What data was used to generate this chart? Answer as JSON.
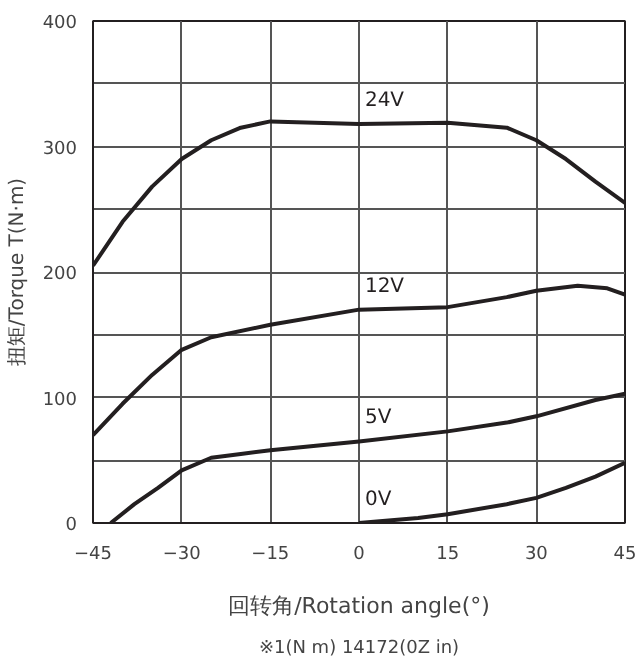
{
  "chart_data": {
    "type": "line",
    "xlabel": "回转角/Rotation angle(°)",
    "ylabel": "扭矩/Torque T(N·m)",
    "annotations": [
      "※1(N m) 14172(0Z in)"
    ],
    "xlim": [
      -45,
      45
    ],
    "ylim": [
      0,
      400
    ],
    "xticks": [
      {
        "value": -45,
        "label": "−45"
      },
      {
        "value": -30,
        "label": "−30"
      },
      {
        "value": -15,
        "label": "−15"
      },
      0,
      15,
      30,
      45
    ],
    "yticks": [
      0,
      {
        "value": 50,
        "label": null
      },
      100,
      {
        "value": 150,
        "label": null
      },
      200,
      {
        "value": 250,
        "label": null
      },
      300,
      {
        "value": 350,
        "label": null
      },
      400
    ],
    "grid": true,
    "marker": "none",
    "line_style": "solid",
    "series": [
      {
        "name": "24V",
        "color": "#231f20",
        "x": [
          -45,
          -40,
          -35,
          -30,
          -25,
          -20,
          -15,
          0,
          15,
          25,
          30,
          35,
          40,
          45
        ],
        "values": [
          205,
          240,
          268,
          290,
          305,
          315,
          320,
          318,
          319,
          315,
          305,
          290,
          272,
          255
        ]
      },
      {
        "name": "12V",
        "color": "#231f20",
        "x": [
          -45,
          -40,
          -35,
          -30,
          -25,
          -15,
          0,
          15,
          25,
          30,
          37,
          42,
          45
        ],
        "values": [
          70,
          95,
          118,
          138,
          148,
          158,
          170,
          172,
          180,
          185,
          189,
          187,
          182
        ]
      },
      {
        "name": "5V",
        "color": "#231f20",
        "x": [
          -42,
          -38,
          -34,
          -30,
          -25,
          -20,
          -15,
          0,
          15,
          25,
          30,
          40,
          45
        ],
        "values": [
          0,
          15,
          28,
          42,
          52,
          55,
          58,
          65,
          73,
          80,
          85,
          98,
          103
        ]
      },
      {
        "name": "0V",
        "color": "#231f20",
        "x": [
          0,
          10,
          15,
          25,
          30,
          35,
          40,
          45
        ],
        "values": [
          0,
          4,
          7,
          15,
          20,
          28,
          37,
          48
        ]
      }
    ]
  }
}
